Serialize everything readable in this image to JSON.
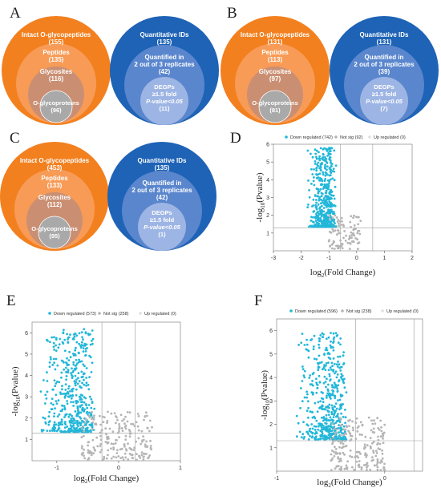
{
  "panels": {
    "A": {
      "letter": "A",
      "left": {
        "intact": "Intact O-glycopeptides",
        "intact_n": "(155)",
        "peptides": "Peptides",
        "peptides_n": "(135)",
        "glycosites": "Glycosites",
        "glycosites_n": "(116)",
        "proteins": "O-glycoproteins",
        "proteins_n": "(96)"
      },
      "right": {
        "quant": "Quantitative IDs",
        "quant_n": "(135)",
        "quantified_l1": "Quantified in",
        "quantified_l2": "2 out of 3 replicates",
        "quantified_n": "(42)",
        "degp_l1": "DEGPs",
        "degp_l2": "≥1.5 fold",
        "degp_l3": "P-value<0.05",
        "degp_n": "(11)"
      }
    },
    "B": {
      "letter": "B",
      "left": {
        "intact": "Intact O-glycopeptides",
        "intact_n": "(131)",
        "peptides": "Peptides",
        "peptides_n": "(113)",
        "glycosites": "Glycosites",
        "glycosites_n": "(97)",
        "proteins": "O-glycoproteins",
        "proteins_n": "(81)"
      },
      "right": {
        "quant": "Quantitative IDs",
        "quant_n": "(131)",
        "quantified_l1": "Quantified in",
        "quantified_l2": "2 out of 3 replicates",
        "quantified_n": "(39)",
        "degp_l1": "DEGPs",
        "degp_l2": "≥1.5 fold",
        "degp_l3": "P-value<0.05",
        "degp_n": "(7)"
      }
    },
    "C": {
      "letter": "C",
      "left": {
        "intact": "Intact O-glycopeptides",
        "intact_n": "(453)",
        "peptides": "Peptides",
        "peptides_n": "(133)",
        "glycosites": "Glycosites",
        "glycosites_n": "(112)",
        "proteins": "O-glycoproteins",
        "proteins_n": "(95)"
      },
      "right": {
        "quant": "Quantitative IDs",
        "quant_n": "(135)",
        "quantified_l1": "Quantified in",
        "quantified_l2": "2 out of 3 replicates",
        "quantified_n": "(42)",
        "degp_l1": "DEGPs",
        "degp_l2": "≥1.5 fold",
        "degp_l3": "P-value<0.05",
        "degp_n": "(1)"
      }
    },
    "D": {
      "letter": "D"
    },
    "E": {
      "letter": "E"
    },
    "F": {
      "letter": "F"
    }
  },
  "colors": {
    "orange_outer": "#f3801f",
    "orange_mid": "#f79b57",
    "orange_inner": "#ca8f73",
    "grey_core": "#a9a9a9",
    "blue_outer": "#1e63b6",
    "blue_mid": "#5a86cd",
    "blue_inner": "#9db5e4",
    "down": "#22b7d9",
    "notsig": "#b5b5b5"
  },
  "chart_data": [
    {
      "type": "scatter",
      "panel": "D",
      "legend": [
        "Down regulated (742)",
        "Not sig (92)",
        "Up regulated (0)"
      ],
      "xlabel": "log2(Fold Change)",
      "ylabel": "-log10(Pvalue)",
      "xlim": [
        -3,
        2
      ],
      "ylim": [
        0,
        6
      ],
      "xticks": [
        "-3",
        "-2",
        "-1",
        "0",
        "1",
        "2"
      ],
      "yticks": [
        "1",
        "2",
        "3",
        "4",
        "5",
        "6"
      ],
      "vlines": [
        -0.58,
        0.58
      ],
      "hline": 1.3,
      "series": [
        {
          "name": "Down regulated",
          "count": 742,
          "x_range": [
            -1.8,
            -0.6
          ],
          "y_range": [
            1.35,
            5.8
          ]
        },
        {
          "name": "Not sig",
          "count": 92,
          "x_range": [
            -1.0,
            0.15
          ],
          "y_range": [
            0.1,
            2.0
          ]
        },
        {
          "name": "Up regulated",
          "count": 0
        }
      ]
    },
    {
      "type": "scatter",
      "panel": "E",
      "legend": [
        "Down regulated (573)",
        "Not sig (258)",
        "Up regulated (0)"
      ],
      "xlabel": "log2(Fold Change)",
      "ylabel": "-log10(Pvalue)",
      "xlim": [
        -1.4,
        1
      ],
      "ylim": [
        0,
        6.5
      ],
      "xticks": [
        "-1",
        "0",
        "1"
      ],
      "yticks": [
        "1",
        "2",
        "3",
        "4",
        "5",
        "6"
      ],
      "vlines": [
        -0.27,
        0.27
      ],
      "hline": 1.3,
      "series": [
        {
          "name": "Down regulated",
          "count": 573,
          "x_range": [
            -1.3,
            -0.27
          ],
          "y_range": [
            1.35,
            6.3
          ]
        },
        {
          "name": "Not sig",
          "count": 258,
          "x_range": [
            -0.6,
            0.55
          ],
          "y_range": [
            0.0,
            2.3
          ]
        },
        {
          "name": "Up regulated",
          "count": 0
        }
      ]
    },
    {
      "type": "scatter",
      "panel": "F",
      "legend": [
        "Down regulated (596)",
        "Not sig (238)",
        "Up regulated (0)"
      ],
      "xlabel": "log2(Fold Change)",
      "ylabel": "-log10(Pvalue)",
      "xlim": [
        -1,
        0.35
      ],
      "ylim": [
        0,
        6.5
      ],
      "xticks": [
        "-1",
        "0"
      ],
      "yticks": [
        "1",
        "2",
        "3",
        "4",
        "5",
        "6"
      ],
      "vlines": [
        -0.27,
        0.27
      ],
      "hline": 1.3,
      "series": [
        {
          "name": "Down regulated",
          "count": 596,
          "x_range": [
            -0.85,
            -0.27
          ],
          "y_range": [
            1.35,
            5.9
          ]
        },
        {
          "name": "Not sig",
          "count": 238,
          "x_range": [
            -0.5,
            0.0
          ],
          "y_range": [
            0.0,
            2.3
          ]
        },
        {
          "name": "Up regulated",
          "count": 0
        }
      ]
    }
  ]
}
